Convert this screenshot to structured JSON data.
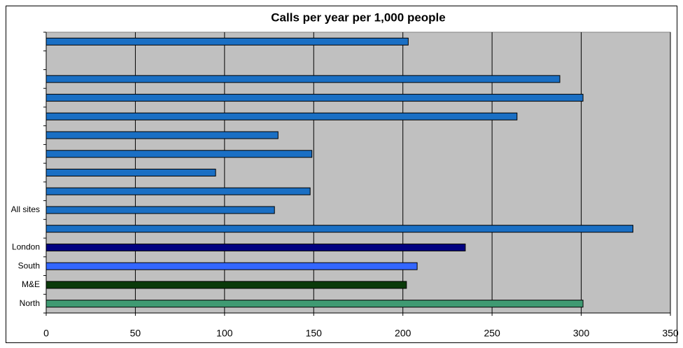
{
  "chart_data": {
    "type": "barh",
    "title": "Calls per year per 1,000 people",
    "categories": [
      "North",
      "M&E",
      "South",
      "London",
      null,
      "All sites",
      null,
      null,
      null,
      null,
      null,
      null,
      null,
      null,
      null
    ],
    "values": [
      301,
      202,
      208,
      235,
      329,
      128,
      148,
      95,
      149,
      130,
      264,
      301,
      288,
      null,
      203
    ],
    "colors": [
      "#3f9a72",
      "#0a3a0a",
      "#3366ff",
      "#000080",
      "#1a6fc4",
      "#1a6fc4",
      "#1a6fc4",
      "#1a6fc4",
      "#1a6fc4",
      "#1a6fc4",
      "#1a6fc4",
      "#1a6fc4",
      "#1a6fc4",
      "#1a6fc4",
      "#1a6fc4"
    ],
    "xlim": [
      0,
      350
    ],
    "xticks": [
      0,
      50,
      100,
      150,
      200,
      250,
      300,
      350
    ],
    "grid": true
  }
}
